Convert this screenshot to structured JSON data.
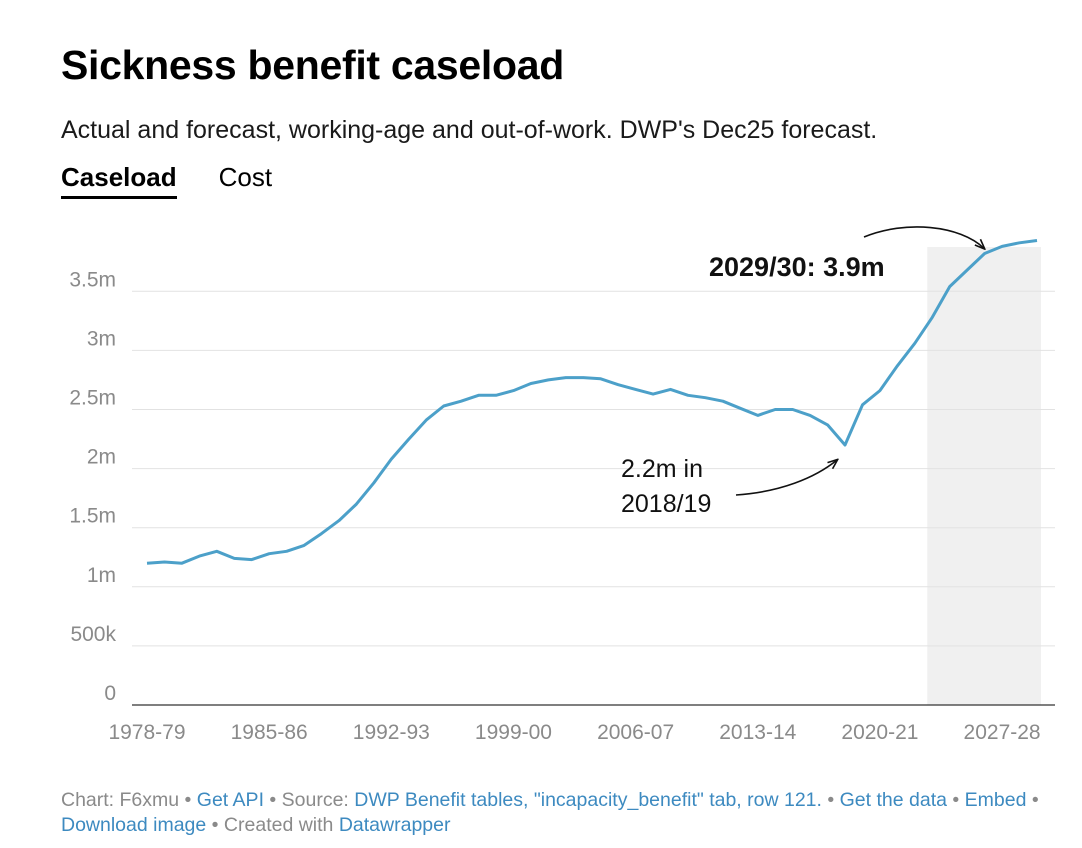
{
  "header": {
    "title": "Sickness benefit caseload",
    "subtitle": "Actual and forecast, working-age and out-of-work. DWP's Dec25 forecast."
  },
  "tabs": [
    {
      "label": "Caseload",
      "active": true
    },
    {
      "label": "Cost",
      "active": false
    }
  ],
  "chart_data": {
    "type": "line",
    "line_color": "#4ca0c9",
    "shade_color": "#f0f0f0",
    "grid": true,
    "x": [
      "1978-79",
      "1979-80",
      "1980-81",
      "1981-82",
      "1982-83",
      "1983-84",
      "1984-85",
      "1985-86",
      "1986-87",
      "1987-88",
      "1988-89",
      "1989-90",
      "1990-91",
      "1991-92",
      "1992-93",
      "1993-94",
      "1994-95",
      "1995-96",
      "1996-97",
      "1997-98",
      "1998-99",
      "1999-00",
      "2000-01",
      "2001-02",
      "2002-03",
      "2003-04",
      "2004-05",
      "2005-06",
      "2006-07",
      "2007-08",
      "2008-09",
      "2009-10",
      "2010-11",
      "2011-12",
      "2012-13",
      "2013-14",
      "2014-15",
      "2015-16",
      "2016-17",
      "2017-18",
      "2018-19",
      "2019-20",
      "2020-21",
      "2021-22",
      "2022-23",
      "2023-24",
      "2024-25",
      "2025-26",
      "2026-27",
      "2027-28",
      "2028-29",
      "2029-30"
    ],
    "series": [
      {
        "values": [
          1.2,
          1.21,
          1.2,
          1.26,
          1.3,
          1.24,
          1.23,
          1.28,
          1.3,
          1.35,
          1.45,
          1.56,
          1.7,
          1.88,
          2.08,
          2.25,
          2.41,
          2.53,
          2.57,
          2.62,
          2.62,
          2.66,
          2.72,
          2.75,
          2.77,
          2.77,
          2.76,
          2.71,
          2.67,
          2.63,
          2.67,
          2.62,
          2.6,
          2.57,
          2.51,
          2.45,
          2.5,
          2.5,
          2.45,
          2.37,
          2.2,
          2.54,
          2.66,
          2.87,
          3.06,
          3.28,
          3.54,
          3.68,
          3.82,
          3.88,
          3.91,
          3.93
        ]
      }
    ],
    "xticks": [
      "1978-79",
      "1985-86",
      "1992-93",
      "1999-00",
      "2006-07",
      "2013-14",
      "2020-21",
      "2027-28"
    ],
    "yticks": [
      0,
      0.5,
      1,
      1.5,
      2,
      2.5,
      3,
      3.5
    ],
    "ytick_labels": [
      "0",
      "500k",
      "1m",
      "1.5m",
      "2m",
      "2.5m",
      "3m",
      "3.5m"
    ],
    "ylim": [
      0,
      3.9
    ],
    "forecast_shade_from_index": 45,
    "annotations": {
      "peak": {
        "text": "2029/30: 3.9m",
        "index": 49
      },
      "trough": {
        "line1": "2.2m  in",
        "line2": "2018/19",
        "index": 40
      }
    }
  },
  "footer": {
    "chart_prefix": "Chart: F6xmu • ",
    "get_api": "Get API",
    "source_prefix": " • Source: ",
    "source_link": "DWP Benefit tables, \"incapacity_benefit\" tab, row 121.",
    "sep1": " • ",
    "get_data": "Get the data",
    "sep2": " • ",
    "embed": "Embed",
    "sep3": " • ",
    "download": "Download image",
    "created_prefix": " • Created with ",
    "datawrapper": "Datawrapper"
  }
}
